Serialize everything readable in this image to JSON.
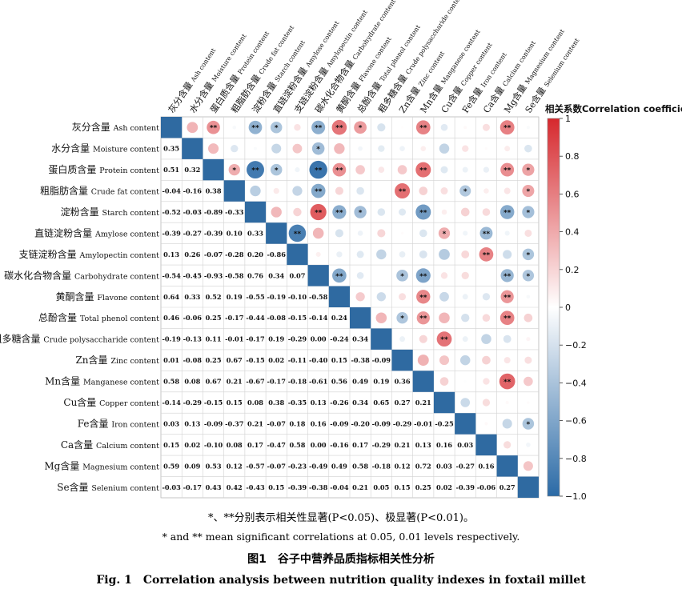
{
  "chart_data": {
    "type": "heatmap",
    "subtype": "correlation-matrix-lower-values-upper-circles",
    "labels": [
      "灰分含量 Ash content",
      "水分含量 Moisture content",
      "蛋白质含量 Protein content",
      "粗脂肪含量 Crude fat content",
      "淀粉含量 Starch content",
      "直链淀粉含量 Amylose content",
      "支链淀粉含量 Amylopectin content",
      "碳水化合物含量 Carbohydrate content",
      "黄酮含量 Flavone content",
      "总酚含量 Total phenol content",
      "粗多糖含量 Crude polysaccharide content",
      "Zn含量 Zinc content",
      "Mn含量 Manganese content",
      "Cu含量 Copper content",
      "Fe含量 Iron content",
      "Ca含量 Calcium content",
      "Mg含量 Magnesium content",
      "Se含量 Selenium content"
    ],
    "lower_values": [
      [],
      [
        "0.35"
      ],
      [
        "0.51",
        "0.32"
      ],
      [
        "-0.04",
        "-0.16",
        "0.38"
      ],
      [
        "-0.52",
        "-0.03",
        "-0.89",
        "-0.33"
      ],
      [
        "-0.39",
        "-0.27",
        "-0.39",
        "0.10",
        "0.33"
      ],
      [
        "0.13",
        "0.26",
        "-0.07",
        "-0.28",
        "0.20",
        "-0.86"
      ],
      [
        "-0.54",
        "-0.45",
        "-0.93",
        "-0.58",
        "0.76",
        "0.34",
        "0.07"
      ],
      [
        "0.64",
        "0.33",
        "0.52",
        "0.19",
        "-0.55",
        "-0.19",
        "-0.10",
        "-0.58"
      ],
      [
        "0.46",
        "-0.06",
        "0.25",
        "-0.17",
        "-0.44",
        "-0.08",
        "-0.15",
        "-0.14",
        "0.24"
      ],
      [
        "-0.19",
        "-0.13",
        "0.11",
        "-0.01",
        "-0.17",
        "0.19",
        "-0.29",
        "0.00",
        "-0.24",
        "0.34"
      ],
      [
        "0.01",
        "-0.08",
        "0.25",
        "0.67",
        "-0.15",
        "0.02",
        "-0.11",
        "-0.40",
        "0.15",
        "-0.38",
        "-0.09"
      ],
      [
        "0.58",
        "0.08",
        "0.67",
        "0.21",
        "-0.67",
        "-0.17",
        "-0.18",
        "-0.61",
        "0.56",
        "0.49",
        "0.19",
        "0.36"
      ],
      [
        "-0.14",
        "-0.29",
        "-0.15",
        "0.15",
        "0.08",
        "0.38",
        "-0.35",
        "0.13",
        "-0.26",
        "0.34",
        "0.65",
        "0.27",
        "0.21"
      ],
      [
        "0.03",
        "0.13",
        "-0.09",
        "-0.37",
        "0.21",
        "-0.07",
        "0.18",
        "0.16",
        "-0.09",
        "-0.20",
        "-0.09",
        "-0.29",
        "-0.01",
        "-0.25"
      ],
      [
        "0.15",
        "0.02",
        "-0.10",
        "0.08",
        "0.17",
        "-0.47",
        "0.58",
        "0.00",
        "-0.16",
        "0.17",
        "-0.29",
        "0.21",
        "0.13",
        "0.16",
        "0.03"
      ],
      [
        "0.59",
        "0.09",
        "0.53",
        "0.12",
        "-0.57",
        "-0.07",
        "-0.23",
        "-0.49",
        "0.49",
        "0.58",
        "-0.18",
        "0.12",
        "0.72",
        "0.03",
        "-0.27",
        "0.16"
      ],
      [
        "-0.03",
        "-0.17",
        "0.43",
        "0.42",
        "-0.43",
        "0.15",
        "-0.39",
        "-0.38",
        "-0.04",
        "0.21",
        "0.05",
        "0.15",
        "0.25",
        "0.02",
        "-0.39",
        "-0.06",
        "0.27"
      ]
    ],
    "significance": [
      {
        "row": 0,
        "col": 2,
        "mark": "**"
      },
      {
        "row": 0,
        "col": 4,
        "mark": "**"
      },
      {
        "row": 0,
        "col": 5,
        "mark": "*"
      },
      {
        "row": 0,
        "col": 7,
        "mark": "**"
      },
      {
        "row": 0,
        "col": 8,
        "mark": "**"
      },
      {
        "row": 0,
        "col": 9,
        "mark": "*"
      },
      {
        "row": 0,
        "col": 12,
        "mark": "**"
      },
      {
        "row": 0,
        "col": 16,
        "mark": "**"
      },
      {
        "row": 1,
        "col": 7,
        "mark": "*"
      },
      {
        "row": 2,
        "col": 3,
        "mark": "*"
      },
      {
        "row": 2,
        "col": 4,
        "mark": "**"
      },
      {
        "row": 2,
        "col": 5,
        "mark": "*"
      },
      {
        "row": 2,
        "col": 7,
        "mark": "**"
      },
      {
        "row": 2,
        "col": 8,
        "mark": "**"
      },
      {
        "row": 2,
        "col": 12,
        "mark": "**"
      },
      {
        "row": 2,
        "col": 16,
        "mark": "**"
      },
      {
        "row": 2,
        "col": 17,
        "mark": "*"
      },
      {
        "row": 3,
        "col": 7,
        "mark": "**"
      },
      {
        "row": 3,
        "col": 11,
        "mark": "**"
      },
      {
        "row": 3,
        "col": 14,
        "mark": "*"
      },
      {
        "row": 3,
        "col": 17,
        "mark": "*"
      },
      {
        "row": 4,
        "col": 7,
        "mark": "**"
      },
      {
        "row": 4,
        "col": 8,
        "mark": "**"
      },
      {
        "row": 4,
        "col": 9,
        "mark": "*"
      },
      {
        "row": 4,
        "col": 12,
        "mark": "**"
      },
      {
        "row": 4,
        "col": 16,
        "mark": "**"
      },
      {
        "row": 4,
        "col": 17,
        "mark": "*"
      },
      {
        "row": 5,
        "col": 6,
        "mark": "**"
      },
      {
        "row": 5,
        "col": 13,
        "mark": "*"
      },
      {
        "row": 5,
        "col": 15,
        "mark": "**"
      },
      {
        "row": 6,
        "col": 15,
        "mark": "**"
      },
      {
        "row": 6,
        "col": 17,
        "mark": "*"
      },
      {
        "row": 7,
        "col": 8,
        "mark": "**"
      },
      {
        "row": 7,
        "col": 11,
        "mark": "*"
      },
      {
        "row": 7,
        "col": 12,
        "mark": "**"
      },
      {
        "row": 7,
        "col": 16,
        "mark": "**"
      },
      {
        "row": 7,
        "col": 17,
        "mark": "*"
      },
      {
        "row": 8,
        "col": 12,
        "mark": "**"
      },
      {
        "row": 8,
        "col": 16,
        "mark": "**"
      },
      {
        "row": 9,
        "col": 11,
        "mark": "*"
      },
      {
        "row": 9,
        "col": 12,
        "mark": "**"
      },
      {
        "row": 9,
        "col": 16,
        "mark": "**"
      },
      {
        "row": 10,
        "col": 13,
        "mark": "**"
      },
      {
        "row": 12,
        "col": 16,
        "mark": "**"
      },
      {
        "row": 14,
        "col": 17,
        "mark": "*"
      }
    ],
    "colorbar": {
      "title": "相关系数Correlation coefficient",
      "range": [
        -1,
        1
      ],
      "ticks": [
        "1",
        "0.8",
        "0.6",
        "0.4",
        "0.2",
        "0",
        "−0.2",
        "−0.4",
        "−0.6",
        "−0.8",
        "−1.0"
      ],
      "colors": {
        "positive": "#d6282d",
        "zero": "#ffffff",
        "negative": "#2b6aa6",
        "diagonal": "#2f6aa1"
      }
    }
  },
  "captions": {
    "note_cn": "*、**分别表示相关性显著(P<0.05)、极显著(P<0.01)。",
    "note_en": "* and ** mean significant correlations at 0.05, 0.01 levels respectively.",
    "title_cn": "图1　谷子中营养品质指标相关性分析",
    "title_en": "Fig. 1　Correlation analysis between nutrition quality indexes in foxtail millet"
  }
}
